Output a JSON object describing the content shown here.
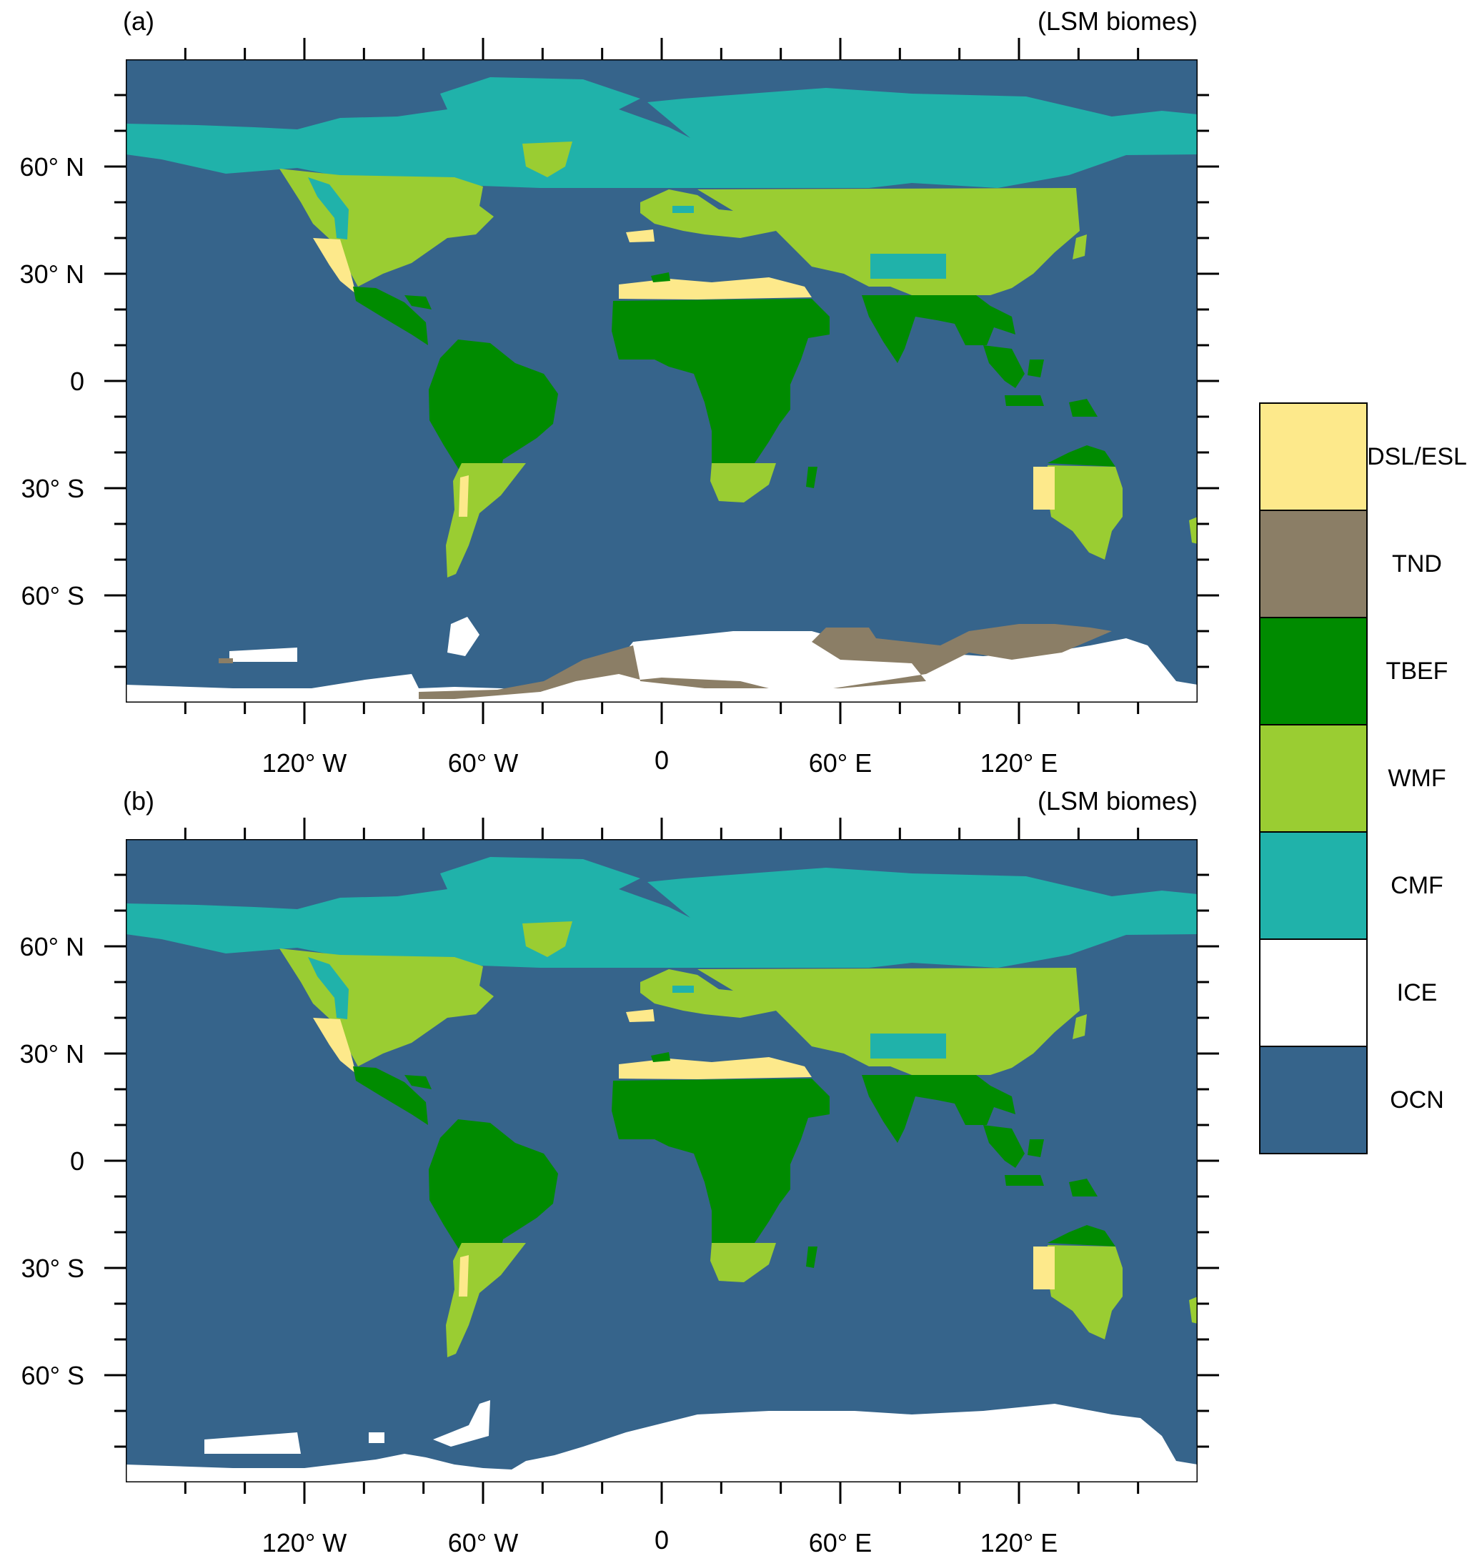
{
  "panels": [
    {
      "label": "(a)",
      "title": "(LSM biomes)",
      "lon_ticks": [
        "120° W",
        "60° W",
        "0",
        "60° E",
        "120° E"
      ],
      "lat_ticks": [
        "60° N",
        "30° N",
        "0",
        "30° S",
        "60° S"
      ],
      "antarctica_icons": [
        "ice",
        "tnd"
      ]
    },
    {
      "label": "(b)",
      "title": "(LSM biomes)",
      "lon_ticks": [
        "120° W",
        "60° W",
        "0",
        "60° E",
        "120° E"
      ],
      "lat_ticks": [
        "60° N",
        "30° N",
        "0",
        "30° S",
        "60° S"
      ],
      "antarctica_icons": [
        "ice"
      ]
    }
  ],
  "legend": [
    {
      "label": "DSL/ESL",
      "color": "#fde98b"
    },
    {
      "label": "TND",
      "color": "#8b7e66"
    },
    {
      "label": "TBEF",
      "color": "#008b00"
    },
    {
      "label": "WMF",
      "color": "#9acd32"
    },
    {
      "label": "CMF",
      "color": "#20b2aa"
    },
    {
      "label": "ICE",
      "color": "#ffffff"
    },
    {
      "label": "OCN",
      "color": "#36648b"
    }
  ],
  "colors": {
    "ocean": "#36648b",
    "cmf": "#20b2aa",
    "wmf": "#9acd32",
    "tbef": "#008b00",
    "dsl": "#fde98b",
    "tnd": "#8b7e66",
    "ice": "#ffffff"
  },
  "map_extent": {
    "lon": [
      -180,
      180
    ],
    "lat": [
      -90,
      90
    ]
  }
}
